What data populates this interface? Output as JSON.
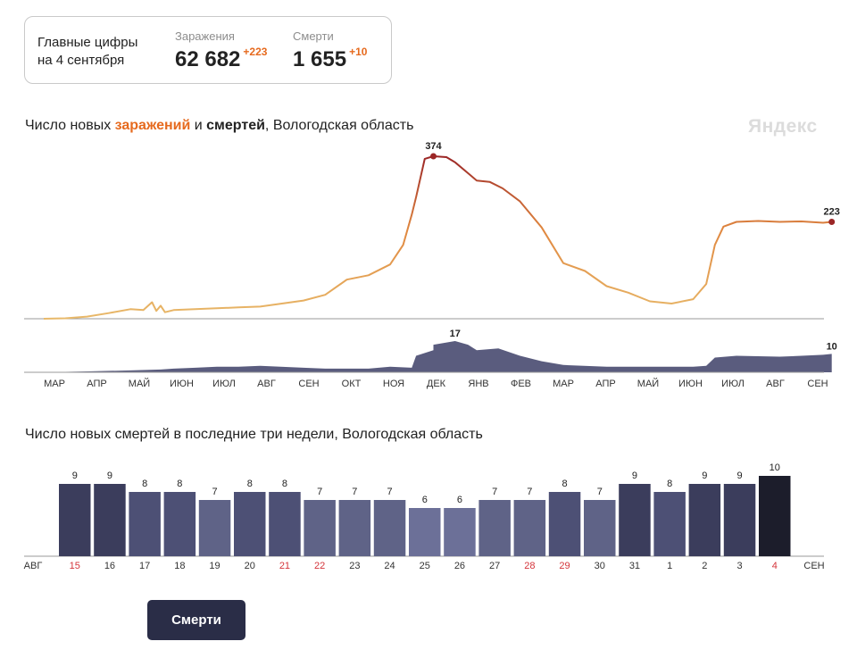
{
  "summary": {
    "caption_line1": "Главные цифры",
    "caption_line2": "на 4 сентября",
    "infections": {
      "label": "Заражения",
      "value": "62 682",
      "delta": "+223"
    },
    "deaths": {
      "label": "Смерти",
      "value": "1 655",
      "delta": "+10"
    }
  },
  "brand": "Яндекс",
  "colors": {
    "infection_low": "#e8b96a",
    "infection_mid": "#e0873f",
    "infection_high": "#9b2626",
    "deaths_area": "#5a5c7e",
    "accent": "#e66a1e",
    "weekend": "#d4343a",
    "button": "#2a2d47"
  },
  "chart1_title": {
    "pre": "Число новых ",
    "inf": "заражений",
    "mid": " и ",
    "death": "смертей",
    "post": ", Вологодская область"
  },
  "chart2_title": "Число новых смертей в последние три недели, Вологодская область",
  "button_label": "Смерти",
  "chart_data": [
    {
      "type": "area",
      "title": "Число новых заражений и смертей, Вологодская область",
      "month_ticks": [
        "МАР",
        "АПР",
        "МАЙ",
        "ИЮН",
        "ИЮЛ",
        "АВГ",
        "СЕН",
        "ОКТ",
        "НОЯ",
        "ДЕК",
        "ЯНВ",
        "ФЕВ",
        "МАР",
        "АПР",
        "МАЙ",
        "ИЮН",
        "ИЮЛ",
        "АВГ",
        "СЕН"
      ],
      "series": [
        {
          "name": "заражения",
          "points": [
            [
              0,
              0
            ],
            [
              0.5,
              1
            ],
            [
              1,
              5
            ],
            [
              1.5,
              13
            ],
            [
              2,
              22
            ],
            [
              2.3,
              20
            ],
            [
              2.5,
              38
            ],
            [
              2.6,
              18
            ],
            [
              2.7,
              30
            ],
            [
              2.8,
              15
            ],
            [
              3,
              20
            ],
            [
              3.5,
              22
            ],
            [
              4,
              24
            ],
            [
              4.5,
              26
            ],
            [
              5,
              28
            ],
            [
              5.5,
              35
            ],
            [
              6,
              42
            ],
            [
              6.5,
              55
            ],
            [
              7,
              90
            ],
            [
              7.5,
              100
            ],
            [
              8,
              125
            ],
            [
              8.3,
              170
            ],
            [
              8.5,
              240
            ],
            [
              8.6,
              280
            ],
            [
              8.8,
              368
            ],
            [
              9,
              374
            ],
            [
              9.3,
              372
            ],
            [
              9.5,
              360
            ],
            [
              9.8,
              335
            ],
            [
              10,
              318
            ],
            [
              10.3,
              315
            ],
            [
              10.6,
              300
            ],
            [
              11,
              270
            ],
            [
              11.5,
              210
            ],
            [
              12,
              128
            ],
            [
              12.5,
              110
            ],
            [
              13,
              75
            ],
            [
              13.5,
              60
            ],
            [
              14,
              40
            ],
            [
              14.5,
              35
            ],
            [
              15,
              45
            ],
            [
              15.3,
              80
            ],
            [
              15.5,
              170
            ],
            [
              15.7,
              212
            ],
            [
              16,
              223
            ],
            [
              16.5,
              225
            ],
            [
              17,
              223
            ],
            [
              17.5,
              224
            ],
            [
              18,
              221
            ],
            [
              18.2,
              223
            ]
          ],
          "labels": [
            {
              "x": 9,
              "y": 374,
              "text": "374"
            },
            {
              "x": 18.2,
              "y": 223,
              "text": "223"
            }
          ],
          "ylim": [
            0,
            374
          ]
        },
        {
          "name": "смерти",
          "points": [
            [
              0,
              0
            ],
            [
              1,
              0.5
            ],
            [
              2,
              1
            ],
            [
              2.7,
              1.5
            ],
            [
              3,
              2
            ],
            [
              3.5,
              2.5
            ],
            [
              4,
              3
            ],
            [
              4.5,
              3
            ],
            [
              5,
              3.5
            ],
            [
              6,
              2.5
            ],
            [
              6.5,
              2
            ],
            [
              7,
              2
            ],
            [
              7.5,
              2
            ],
            [
              8,
              3
            ],
            [
              8.5,
              2.5
            ],
            [
              8.6,
              9
            ],
            [
              9,
              12
            ],
            [
              9,
              15
            ],
            [
              9.5,
              17
            ],
            [
              9.8,
              15
            ],
            [
              10,
              12
            ],
            [
              10.5,
              13
            ],
            [
              11,
              9
            ],
            [
              11.5,
              6
            ],
            [
              12,
              4
            ],
            [
              13,
              3
            ],
            [
              14,
              3
            ],
            [
              15,
              3
            ],
            [
              15.3,
              3.5
            ],
            [
              15.5,
              8
            ],
            [
              16,
              9
            ],
            [
              17,
              8.5
            ],
            [
              17.5,
              9
            ],
            [
              18,
              9.5
            ],
            [
              18.2,
              10
            ]
          ],
          "labels": [
            {
              "x": 9.5,
              "y": 17,
              "text": "17"
            },
            {
              "x": 18.2,
              "y": 10,
              "text": "10"
            }
          ],
          "ylim": [
            0,
            17
          ]
        }
      ]
    },
    {
      "type": "bar",
      "title": "Число новых смертей в последние три недели, Вологодская область",
      "x_start_label": "АВГ",
      "x_end_label": "СЕН",
      "categories": [
        "15",
        "16",
        "17",
        "18",
        "19",
        "20",
        "21",
        "22",
        "23",
        "24",
        "25",
        "26",
        "27",
        "28",
        "29",
        "30",
        "31",
        "1",
        "2",
        "3",
        "4"
      ],
      "values": [
        9,
        9,
        8,
        8,
        7,
        8,
        8,
        7,
        7,
        7,
        6,
        6,
        7,
        7,
        8,
        7,
        9,
        8,
        9,
        9,
        10
      ],
      "weekend_days": [
        "15",
        "21",
        "22",
        "28",
        "29",
        "4"
      ],
      "ylim": [
        0,
        10
      ]
    }
  ]
}
